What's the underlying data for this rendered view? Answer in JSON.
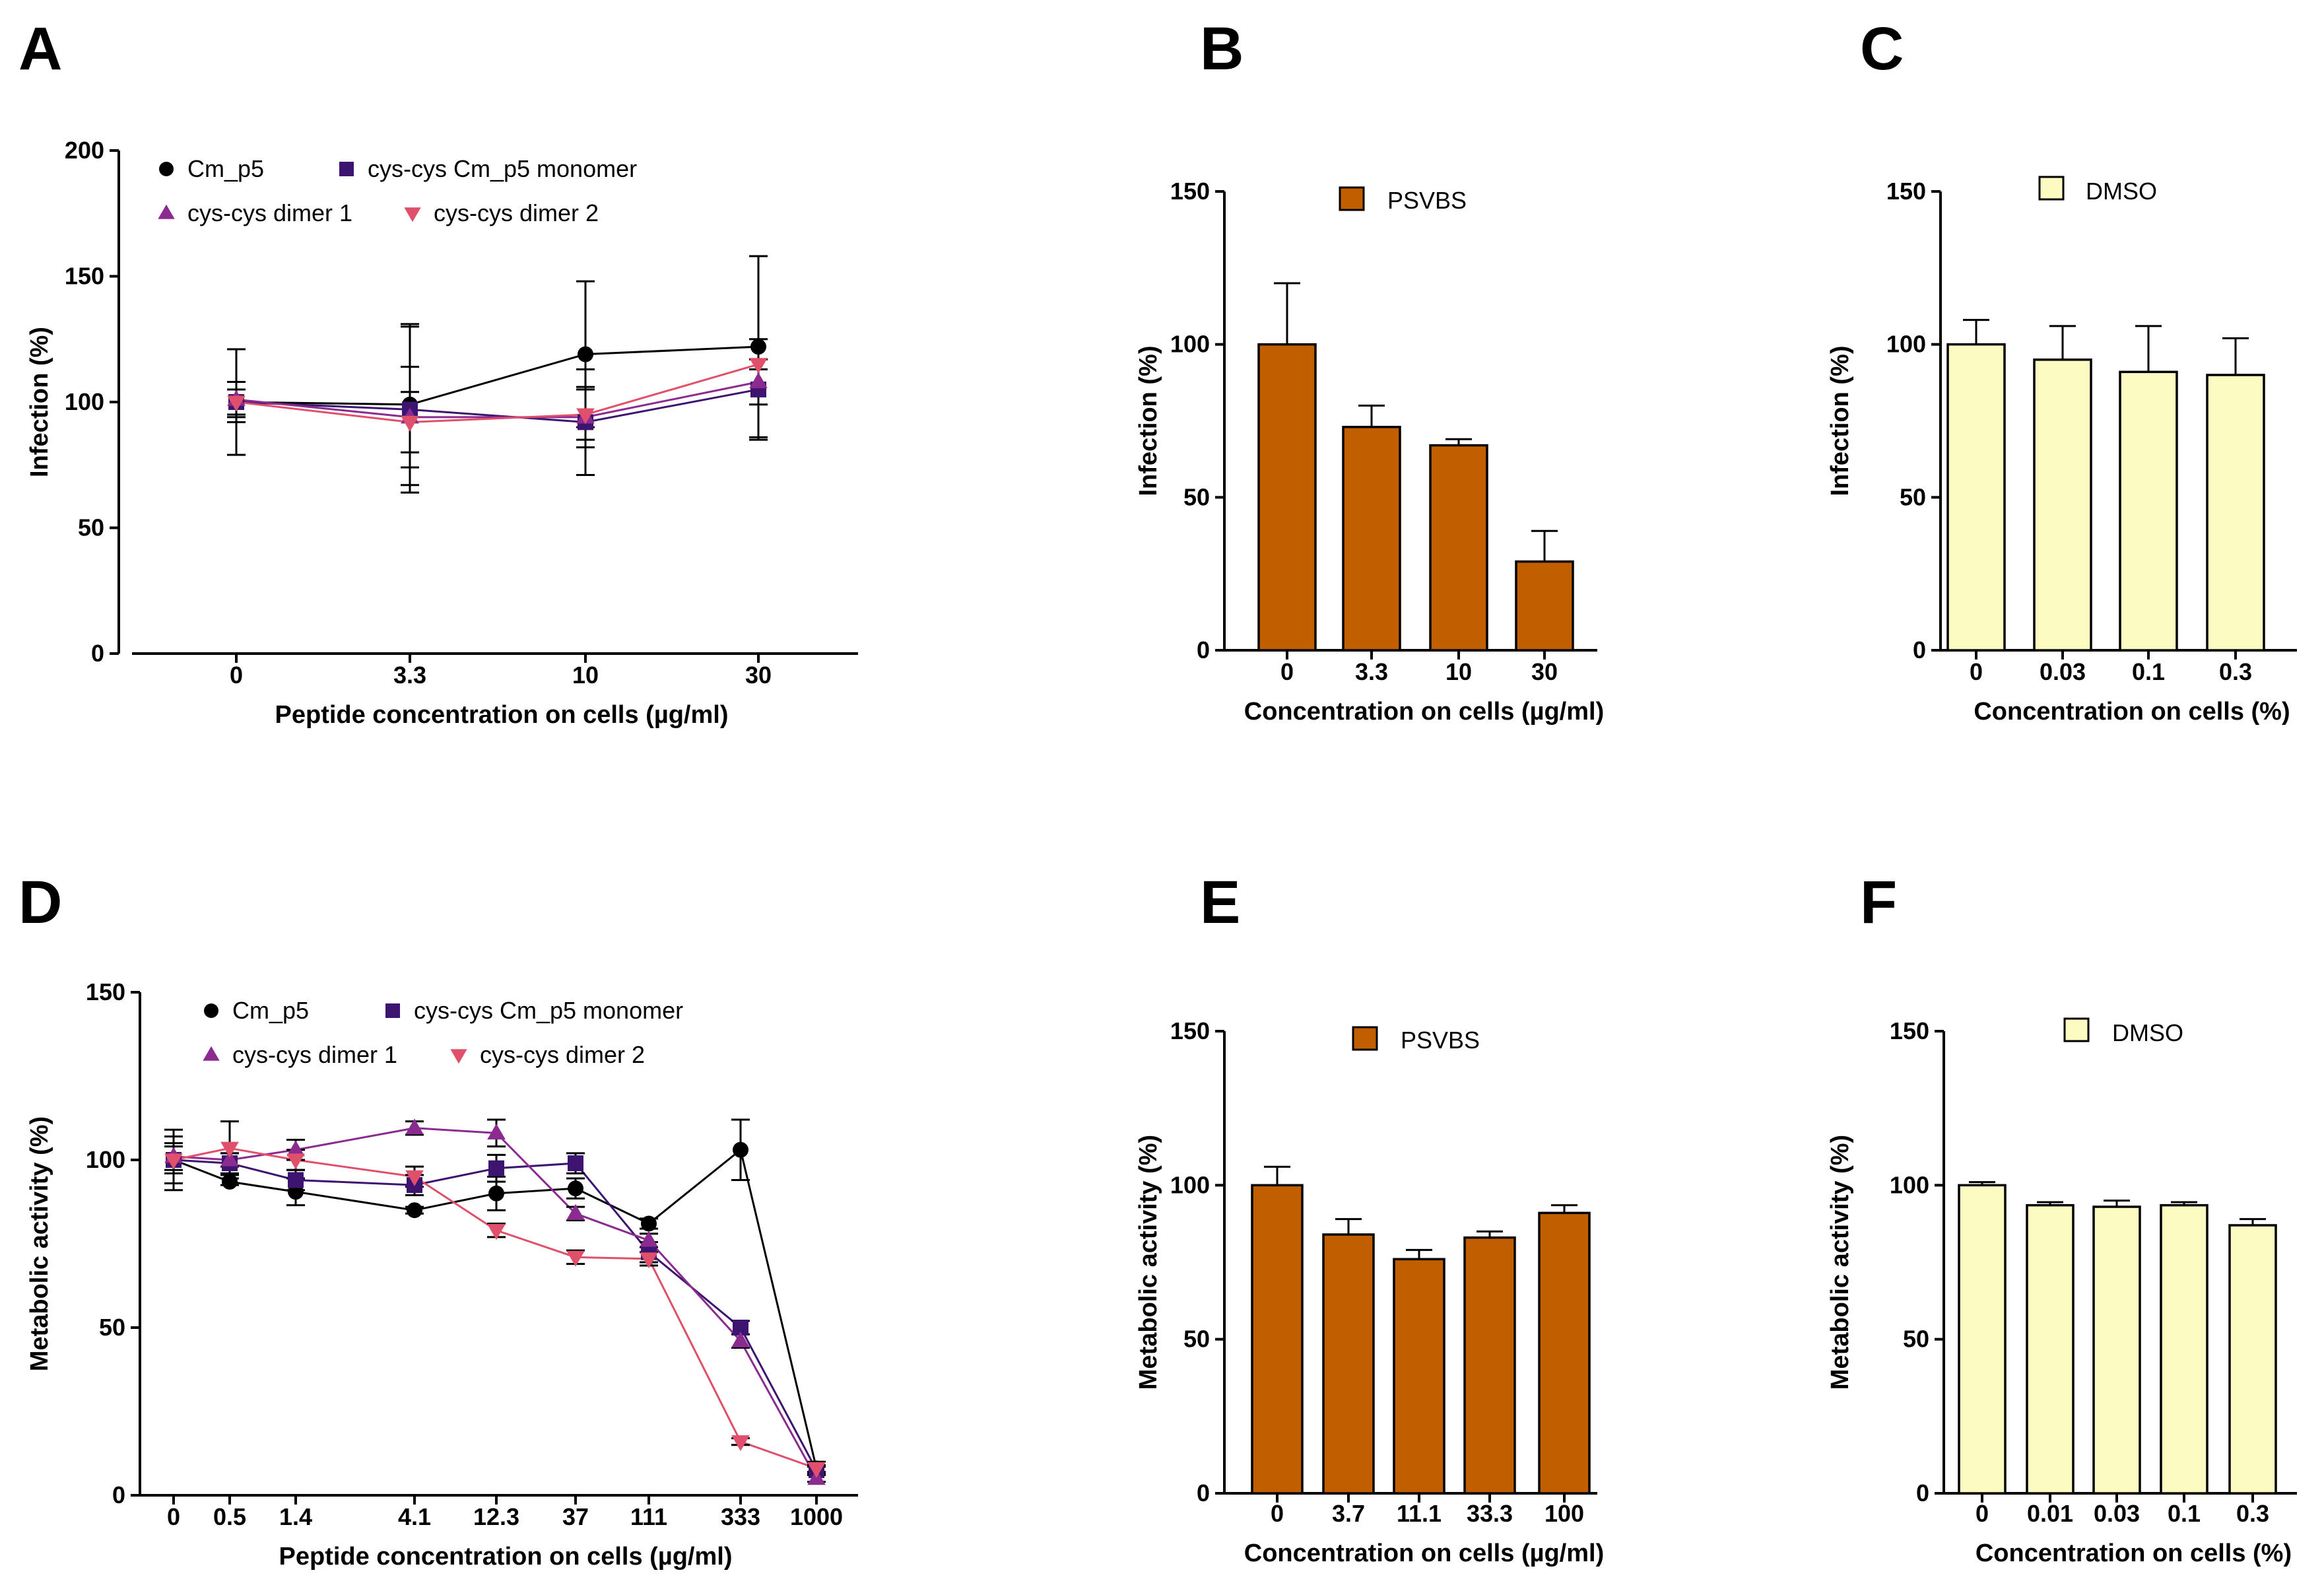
{
  "chart_data": [
    {
      "panel": "A",
      "type": "line",
      "xlabel": "Peptide concentration on cells (µg/ml)",
      "ylabel": "Infection (%)",
      "categories": [
        "0",
        "3.3",
        "10",
        "30"
      ],
      "ylim": [
        0,
        200
      ],
      "yticks": [
        0,
        50,
        100,
        150,
        200
      ],
      "series": [
        {
          "name": "Cm_p5",
          "marker": "circle",
          "color": "#000000",
          "values": [
            100,
            99,
            119,
            122
          ],
          "errors": [
            21,
            32,
            29,
            36
          ]
        },
        {
          "name": "cys-cys Cm_p5 monomer",
          "marker": "square",
          "color": "#3d1570",
          "values": [
            100,
            97,
            92,
            105
          ],
          "errors": [
            8,
            33,
            21,
            20
          ]
        },
        {
          "name": "cys-cys dimer 1",
          "marker": "triangle-up",
          "color": "#8b2a8f",
          "values": [
            101,
            94,
            94,
            108
          ],
          "errors": [
            7,
            20,
            12,
            9
          ]
        },
        {
          "name": "cys-cys dimer 2",
          "marker": "triangle-down",
          "color": "#e0506a",
          "values": [
            100,
            92,
            95,
            115
          ],
          "errors": [
            5,
            12,
            10,
            2
          ]
        }
      ]
    },
    {
      "panel": "B",
      "type": "bar",
      "xlabel": "Concentration on cells (µg/ml)",
      "ylabel": "Infection (%)",
      "categories": [
        "0",
        "3.3",
        "10",
        "30"
      ],
      "ylim": [
        0,
        150
      ],
      "yticks": [
        0,
        50,
        100,
        150
      ],
      "series": [
        {
          "name": "PSVBS",
          "color": "#c05e00",
          "values": [
            100,
            73,
            67,
            29
          ],
          "errors": [
            20,
            7,
            2,
            10
          ]
        }
      ]
    },
    {
      "panel": "C",
      "type": "bar",
      "xlabel": "Concentration on cells (%)",
      "ylabel": "Infection (%)",
      "categories": [
        "0",
        "0.03",
        "0.1",
        "0.3"
      ],
      "ylim": [
        0,
        150
      ],
      "yticks": [
        0,
        50,
        100,
        150
      ],
      "series": [
        {
          "name": "DMSO",
          "color": "#fbfbc2",
          "values": [
            100,
            95,
            91,
            90
          ],
          "errors": [
            8,
            11,
            15,
            12
          ]
        }
      ]
    },
    {
      "panel": "D",
      "type": "line",
      "xlabel": "Peptide concentration on cells (µg/ml)",
      "ylabel": "Metabolic activity (%)",
      "categories": [
        "0",
        "0.5",
        "1.4",
        "4.1",
        "12.3",
        "37",
        "111",
        "333",
        "1000"
      ],
      "ylim": [
        0,
        150
      ],
      "yticks": [
        0,
        50,
        100,
        150
      ],
      "series": [
        {
          "name": "Cm_p5",
          "marker": "circle",
          "color": "#000000",
          "values": [
            100,
            93.5,
            90.5,
            85,
            90,
            91.5,
            81,
            103,
            8
          ],
          "errors": [
            9,
            1,
            4,
            1,
            5,
            3,
            1.5,
            9,
            2
          ]
        },
        {
          "name": "cys-cys Cm_p5 monomer",
          "marker": "square",
          "color": "#3d1570",
          "values": [
            100,
            99,
            94,
            92.5,
            97.5,
            99,
            72.5,
            50,
            7.5
          ],
          "errors": [
            7,
            3,
            3,
            3,
            4,
            3,
            3,
            2,
            1
          ]
        },
        {
          "name": "cys-cys dimer 1",
          "marker": "triangle-up",
          "color": "#8b2a8f",
          "values": [
            101,
            100,
            103,
            109.5,
            108,
            84,
            76,
            46,
            5
          ],
          "errors": [
            4,
            2,
            3,
            2,
            4,
            2,
            2,
            2,
            1
          ]
        },
        {
          "name": "cys-cys dimer 2",
          "marker": "triangle-down",
          "color": "#e0506a",
          "values": [
            100,
            103.5,
            100,
            95,
            79,
            71,
            70.5,
            16,
            8
          ],
          "errors": [
            4,
            8,
            3,
            3,
            2,
            2,
            2,
            1,
            1
          ]
        }
      ]
    },
    {
      "panel": "E",
      "type": "bar",
      "xlabel": "Concentration on cells (µg/ml)",
      "ylabel": "Metabolic activity (%)",
      "categories": [
        "0",
        "3.7",
        "11.1",
        "33.3",
        "100"
      ],
      "ylim": [
        0,
        150
      ],
      "yticks": [
        0,
        50,
        100,
        150
      ],
      "series": [
        {
          "name": "PSVBS",
          "color": "#c05e00",
          "values": [
            100,
            84,
            76,
            83,
            91
          ],
          "errors": [
            6,
            5,
            3,
            2,
            2.5
          ]
        }
      ]
    },
    {
      "panel": "F",
      "type": "bar",
      "xlabel": "Concentration on cells (%)",
      "ylabel": "Metabolic activity (%)",
      "categories": [
        "0",
        "0.01",
        "0.03",
        "0.1",
        "0.3"
      ],
      "ylim": [
        0,
        150
      ],
      "yticks": [
        0,
        50,
        100,
        150
      ],
      "series": [
        {
          "name": "DMSO",
          "color": "#fbfbc2",
          "values": [
            100,
            93.5,
            93,
            93.5,
            87
          ],
          "errors": [
            1,
            1,
            2,
            1,
            2
          ]
        }
      ]
    }
  ]
}
